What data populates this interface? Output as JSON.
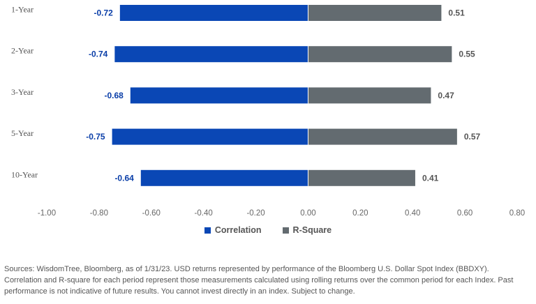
{
  "chart_data": {
    "type": "bar",
    "orientation": "horizontal",
    "categories": [
      "1-Year",
      "2-Year",
      "3-Year",
      "5-Year",
      "10-Year"
    ],
    "series": [
      {
        "name": "Correlation",
        "values": [
          -0.72,
          -0.74,
          -0.68,
          -0.75,
          -0.64
        ],
        "color": "#0a47b5"
      },
      {
        "name": "R-Square",
        "values": [
          0.51,
          0.55,
          0.47,
          0.57,
          0.41
        ],
        "color": "#636b70"
      }
    ],
    "value_labels": {
      "Correlation": [
        "-0.72",
        "-0.74",
        "-0.68",
        "-0.75",
        "-0.64"
      ],
      "R-Square": [
        "0.51",
        "0.55",
        "0.47",
        "0.57",
        "0.41"
      ]
    },
    "xlim": [
      -1.0,
      0.8
    ],
    "x_ticks": [
      -1.0,
      -0.8,
      -0.6,
      -0.4,
      -0.2,
      0.0,
      0.2,
      0.4,
      0.6,
      0.8
    ],
    "x_tick_labels": [
      "-1.00",
      "-0.80",
      "-0.60",
      "-0.40",
      "-0.20",
      "0.00",
      "0.20",
      "0.40",
      "0.60",
      "0.80"
    ],
    "grid": false,
    "legend_position": "bottom"
  },
  "legend": {
    "correlation": "Correlation",
    "rsquare": "R-Square"
  },
  "colors": {
    "correlation": "#0a47b5",
    "rsquare": "#636b70",
    "correlation_label": "#0a3ea8",
    "rsquare_label": "#555555"
  },
  "source_note": "Sources: WisdomTree, Bloomberg, as of 1/31/23. USD returns represented by performance of the Bloomberg U.S. Dollar Spot Index (BBDXY). Correlation and R-square for each period represent those measurements calculated using rolling returns over the common period for each Index. Past performance is not indicative of future results. You cannot invest directly in an index. Subject to change."
}
